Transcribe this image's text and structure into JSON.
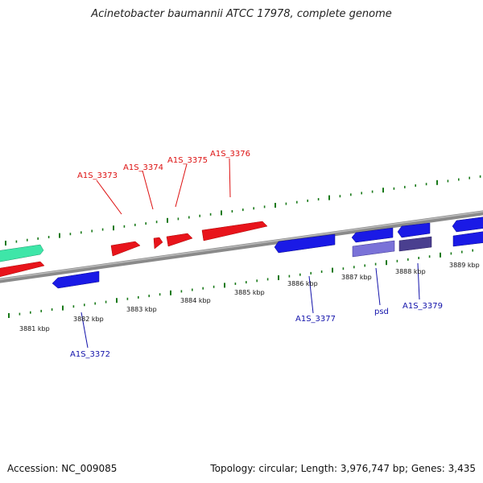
{
  "title": "Acinetobacter baumannii ATCC 17978, complete genome",
  "footer": {
    "accession": "Accession: NC_009085",
    "summary": "Topology: circular; Length: 3,976,747 bp; Genes: 3,435"
  },
  "colors": {
    "forward_gene": "#e8141b",
    "reverse_gene": "#1a1ae6",
    "rna_gene": "#3ee6a8",
    "reverse_gene_light": "#7a72d8",
    "reverse_gene_dark": "#4a3f8f",
    "backbone": "#8a8a8a",
    "tick": "#1a7a1a",
    "forward_label": "#dd1111",
    "reverse_label": "#1111aa"
  },
  "scale_labels": [
    "3881 kbp",
    "3882 kbp",
    "3883 kbp",
    "3884 kbp",
    "3885 kbp",
    "3886 kbp",
    "3887 kbp",
    "3888 kbp",
    "3889 kbp"
  ],
  "forward_labels": [
    "A1S_3373",
    "A1S_3374",
    "A1S_3375",
    "A1S_3376"
  ],
  "reverse_labels": [
    "A1S_3372",
    "A1S_3377",
    "psd",
    "A1S_3379"
  ]
}
